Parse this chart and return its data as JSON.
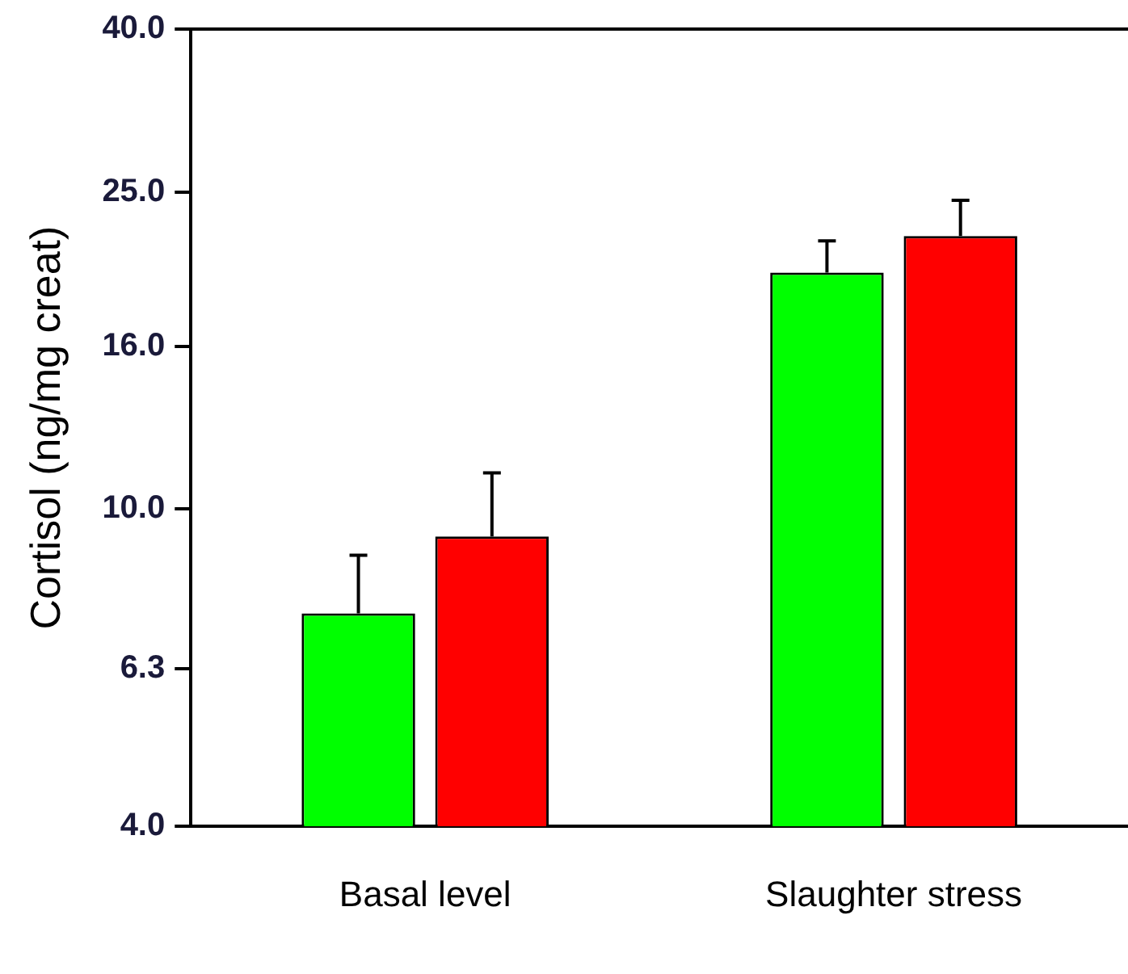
{
  "chart_data": {
    "type": "bar",
    "ylabel": "Cortisol (ng/mg creat)",
    "categories": [
      "Basal level",
      "Slaughter stress"
    ],
    "series": [
      {
        "color": "#00ff00",
        "values": [
          7.4,
          19.8
        ],
        "errors": [
          [
            7.4,
            8.75
          ],
          [
            19.8,
            21.7
          ]
        ]
      },
      {
        "color": "#ff0000",
        "values": [
          9.24,
          22.0
        ],
        "errors": [
          [
            9.24,
            11.1
          ],
          [
            22.0,
            24.4
          ]
        ]
      }
    ],
    "log": "y",
    "ylim": [
      4,
      40
    ],
    "yticks": [
      {
        "value": 4,
        "label": "4.0"
      },
      {
        "value": 6.3,
        "label": "6.3"
      },
      {
        "value": 10,
        "label": "10.0"
      },
      {
        "value": 16,
        "label": "16.0"
      },
      {
        "value": 25,
        "label": "25.0"
      },
      {
        "value": 40,
        "label": "40.0"
      }
    ],
    "grid": false,
    "legend": false
  }
}
